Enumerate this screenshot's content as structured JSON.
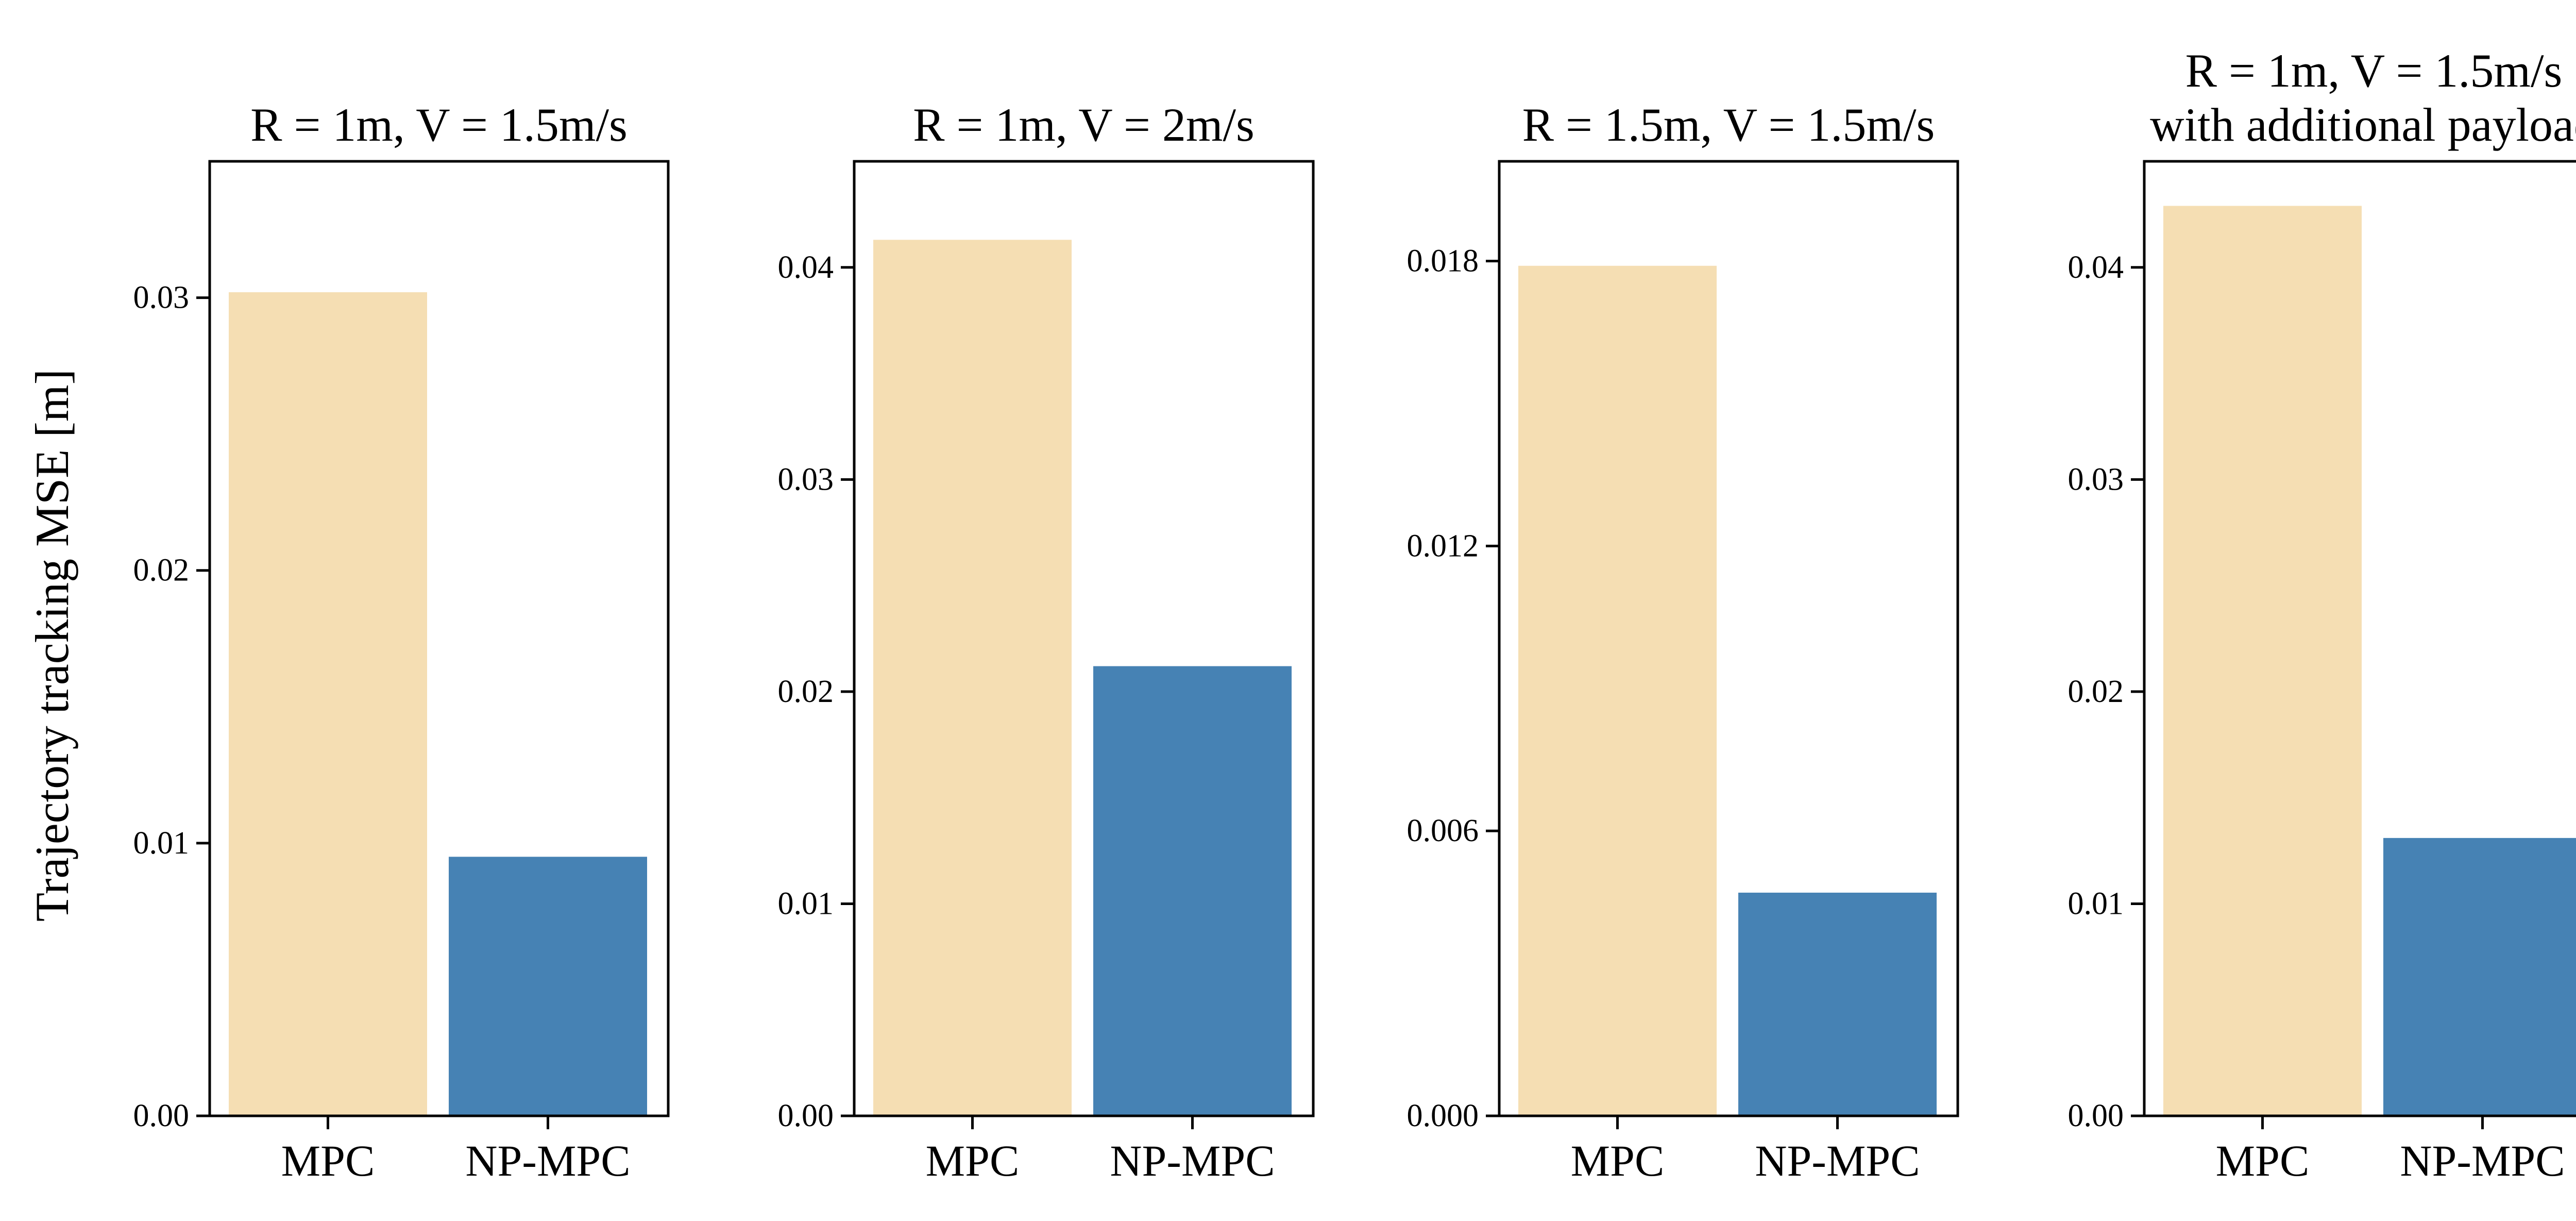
{
  "figure": {
    "ylabel": "Trajectory tracking MSE [m]",
    "colors": {
      "MPC": "#F5DEB3",
      "NP-MPC": "#4682B4"
    }
  },
  "chart_data": [
    {
      "type": "bar",
      "title": [
        "R = 1m, V = 1.5m/s"
      ],
      "categories": [
        "MPC",
        "NP-MPC"
      ],
      "values": [
        0.0302,
        0.0095
      ],
      "ylim": [
        0,
        0.035
      ],
      "yticks": [
        0.0,
        0.01,
        0.02,
        0.03
      ],
      "ytick_labels": [
        "0.00",
        "0.01",
        "0.02",
        "0.03"
      ]
    },
    {
      "type": "bar",
      "title": [
        "R = 1m, V = 2m/s"
      ],
      "categories": [
        "MPC",
        "NP-MPC"
      ],
      "values": [
        0.0413,
        0.0212
      ],
      "ylim": [
        0,
        0.045
      ],
      "yticks": [
        0.0,
        0.01,
        0.02,
        0.03,
        0.04
      ],
      "ytick_labels": [
        "0.00",
        "0.01",
        "0.02",
        "0.03",
        "0.04"
      ]
    },
    {
      "type": "bar",
      "title": [
        "R = 1.5m, V = 1.5m/s"
      ],
      "categories": [
        "MPC",
        "NP-MPC"
      ],
      "values": [
        0.0179,
        0.0047
      ],
      "ylim": [
        0,
        0.0201
      ],
      "yticks": [
        0.0,
        0.006,
        0.012,
        0.018
      ],
      "ytick_labels": [
        "0.000",
        "0.006",
        "0.012",
        "0.018"
      ]
    },
    {
      "type": "bar",
      "title": [
        "R = 1m, V = 1.5m/s",
        "with additional payload"
      ],
      "categories": [
        "MPC",
        "NP-MPC"
      ],
      "values": [
        0.0429,
        0.0131
      ],
      "ylim": [
        0,
        0.045
      ],
      "yticks": [
        0.0,
        0.01,
        0.02,
        0.03,
        0.04
      ],
      "ytick_labels": [
        "0.00",
        "0.01",
        "0.02",
        "0.03",
        "0.04"
      ]
    }
  ]
}
